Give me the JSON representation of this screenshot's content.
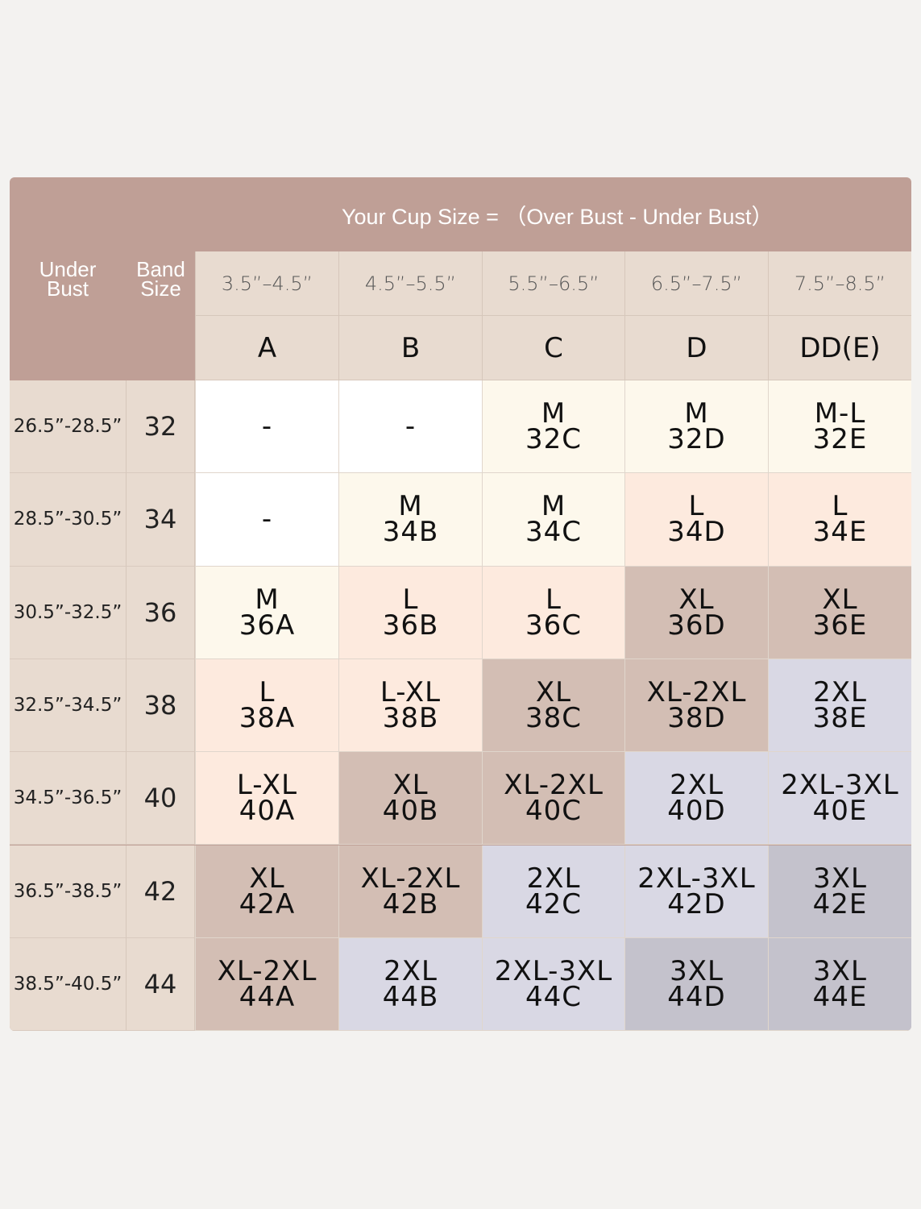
{
  "title": "Your Cup Size =  （Over Bust - Under Bust）",
  "header": {
    "under_bust": [
      "Under",
      "Bust"
    ],
    "band_size": [
      "Band",
      "Size"
    ]
  },
  "cup_ranges": [
    "3.5”–4.5”",
    "4.5”–5.5”",
    "5.5”–6.5”",
    "6.5”–7.5”",
    "7.5”–8.5”"
  ],
  "cups": [
    "A",
    "B",
    "C",
    "D",
    "DD(E)"
  ],
  "colors": {
    "header": "#bf9f96",
    "subheader": "#e8dbd0",
    "white": "#ffffff",
    "cream": "#fdf8ec",
    "peach": "#fdeade",
    "taupe": "#d3beb4",
    "lavender": "#d9d8e4",
    "gray": "#c4c2cc"
  },
  "rows": [
    {
      "under_bust": "26.5”-28.5”",
      "band": "32",
      "cells": [
        [
          "-",
          ""
        ],
        [
          "-",
          ""
        ],
        [
          "M",
          "32C"
        ],
        [
          "M",
          "32D"
        ],
        [
          "M-L",
          "32E"
        ]
      ],
      "tones": [
        "white",
        "white",
        "cream",
        "cream",
        "cream"
      ]
    },
    {
      "under_bust": "28.5”-30.5”",
      "band": "34",
      "cells": [
        [
          "-",
          ""
        ],
        [
          "M",
          "34B"
        ],
        [
          "M",
          "34C"
        ],
        [
          "L",
          "34D"
        ],
        [
          "L",
          "34E"
        ]
      ],
      "tones": [
        "white",
        "cream",
        "cream",
        "peach",
        "peach"
      ]
    },
    {
      "under_bust": "30.5”-32.5”",
      "band": "36",
      "cells": [
        [
          "M",
          "36A"
        ],
        [
          "L",
          "36B"
        ],
        [
          "L",
          "36C"
        ],
        [
          "XL",
          "36D"
        ],
        [
          "XL",
          "36E"
        ]
      ],
      "tones": [
        "cream",
        "peach",
        "peach",
        "taupe",
        "taupe"
      ]
    },
    {
      "under_bust": "32.5”-34.5”",
      "band": "38",
      "cells": [
        [
          "L",
          "38A"
        ],
        [
          "L-XL",
          "38B"
        ],
        [
          "XL",
          "38C"
        ],
        [
          "XL-2XL",
          "38D"
        ],
        [
          "2XL",
          "38E"
        ]
      ],
      "tones": [
        "peach",
        "peach",
        "taupe",
        "taupe",
        "lavender"
      ]
    },
    {
      "under_bust": "34.5”-36.5”",
      "band": "40",
      "cells": [
        [
          "L-XL",
          "40A"
        ],
        [
          "XL",
          "40B"
        ],
        [
          "XL-2XL",
          "40C"
        ],
        [
          "2XL",
          "40D"
        ],
        [
          "2XL-3XL",
          "40E"
        ]
      ],
      "tones": [
        "peach",
        "taupe",
        "taupe",
        "lavender",
        "lavender"
      ]
    },
    {
      "under_bust": "36.5”-38.5”",
      "band": "42",
      "cells": [
        [
          "XL",
          "42A"
        ],
        [
          "XL-2XL",
          "42B"
        ],
        [
          "2XL",
          "42C"
        ],
        [
          "2XL-3XL",
          "42D"
        ],
        [
          "3XL",
          "42E"
        ]
      ],
      "tones": [
        "taupe",
        "taupe",
        "lavender",
        "lavender",
        "gray"
      ]
    },
    {
      "under_bust": "38.5”-40.5”",
      "band": "44",
      "cells": [
        [
          "XL-2XL",
          "44A"
        ],
        [
          "2XL",
          "44B"
        ],
        [
          "2XL-3XL",
          "44C"
        ],
        [
          "3XL",
          "44D"
        ],
        [
          "3XL",
          "44E"
        ]
      ],
      "tones": [
        "taupe",
        "lavender",
        "lavender",
        "gray",
        "gray"
      ]
    }
  ]
}
